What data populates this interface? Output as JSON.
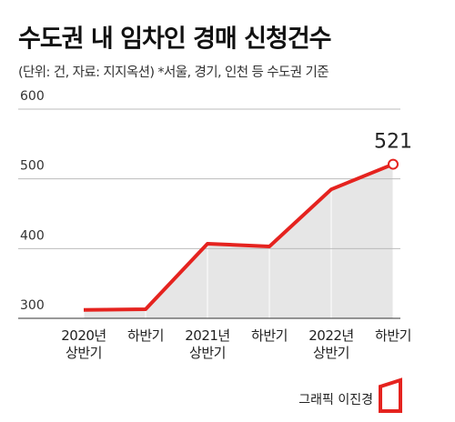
{
  "chart_data": {
    "type": "line",
    "title": "수도권 내 임차인 경매 신청건수",
    "subtitle": "(단위: 건, 자료: 지지옥션) *서울, 경기, 인천 등 수도권 기준",
    "categories": [
      "2020년\n상반기",
      "하반기",
      "2021년\n상반기",
      "하반기",
      "2022년\n상반기",
      "하반기"
    ],
    "series": [
      {
        "name": "임차인 경매 신청건수",
        "color": "#e5231f",
        "values": [
          312,
          313,
          407,
          403,
          485,
          521
        ]
      }
    ],
    "ylim": [
      300,
      600
    ],
    "yticks": [
      300,
      400,
      500,
      600
    ],
    "grid": true,
    "credit": "그래픽 이진경"
  }
}
